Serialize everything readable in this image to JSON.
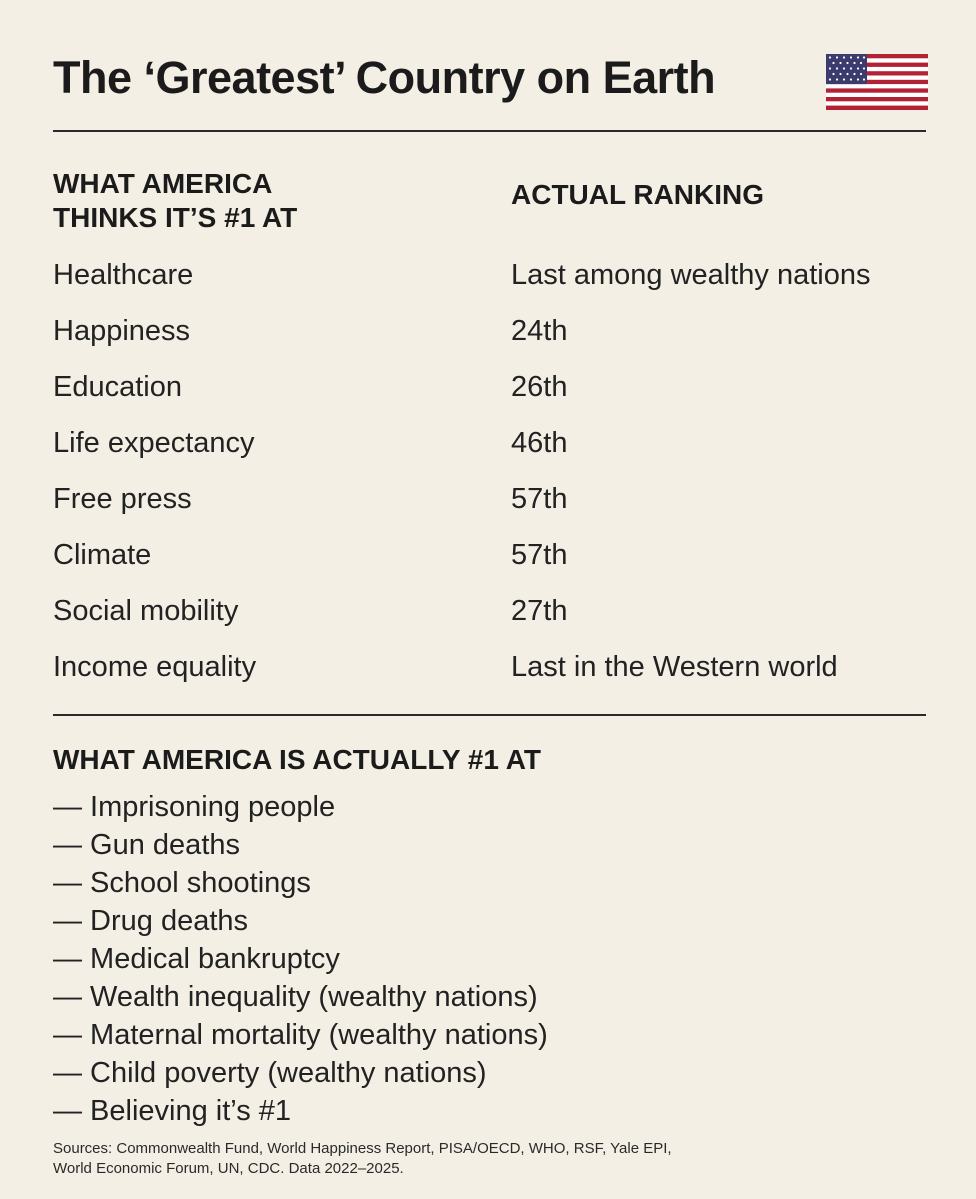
{
  "title": "The ‘Greatest’ Country on Earth",
  "flag_icon": "us-flag-icon",
  "colors": {
    "background": "#f3efe4",
    "text": "#1e1e1e",
    "flag_red": "#b22234",
    "flag_blue": "#3c3b6e"
  },
  "table": {
    "col1_header_line1": "WHAT AMERICA",
    "col1_header_line2": "THINKS IT’S #1 AT",
    "col2_header": "ACTUAL RANKING",
    "rows": [
      {
        "label": "Healthcare",
        "value": "Last among wealthy nations"
      },
      {
        "label": "Happiness",
        "value": "24th"
      },
      {
        "label": "Education",
        "value": "26th"
      },
      {
        "label": "Life expectancy",
        "value": "46th"
      },
      {
        "label": "Free press",
        "value": "57th"
      },
      {
        "label": "Climate",
        "value": "57th"
      },
      {
        "label": "Social mobility",
        "value": "27th"
      },
      {
        "label": "Income equality",
        "value": "Last in the Western world"
      }
    ]
  },
  "actually_first": {
    "header": "WHAT AMERICA IS ACTUALLY #1 AT",
    "items": [
      "— Imprisoning people",
      "— Gun deaths",
      "— School shootings",
      "— Drug deaths",
      "— Medical bankruptcy",
      "— Wealth inequality (wealthy nations)",
      "— Maternal mortality (wealthy nations)",
      "— Child poverty (wealthy nations)",
      "— Believing it’s #1"
    ]
  },
  "sources_line1": "Sources: Commonwealth Fund, World Happiness Report, PISA/OECD, WHO, RSF, Yale EPI,",
  "sources_line2": "World Economic Forum, UN, CDC. Data 2022–2025."
}
